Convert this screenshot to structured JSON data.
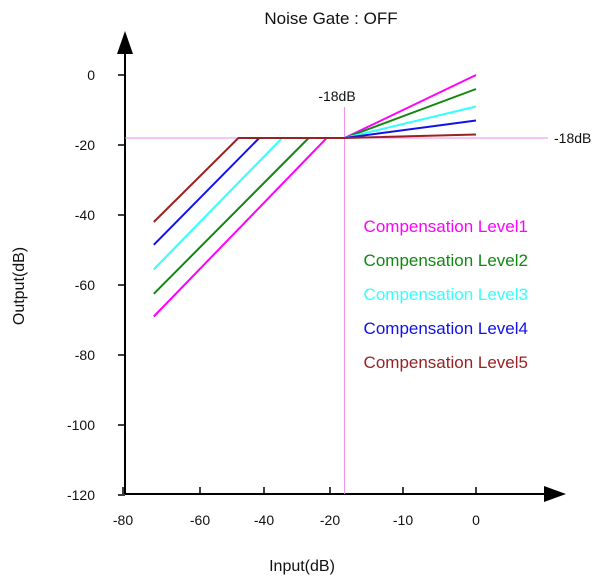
{
  "chart_data": {
    "type": "line",
    "title": "Noise Gate : OFF",
    "xlabel": "Input(dB)",
    "ylabel": "Output(dB)",
    "x_ticks": [
      -80,
      -60,
      -40,
      -20,
      -10,
      0
    ],
    "y_ticks": [
      0,
      -20,
      -40,
      -60,
      -80,
      -100,
      -120
    ],
    "xlim": [
      -80,
      10
    ],
    "ylim": [
      -120,
      5
    ],
    "threshold": -18,
    "threshold_x_label": "-18dB",
    "threshold_y_label": "-18dB",
    "legend_position": "right",
    "series": [
      {
        "name": "Compensation Level1",
        "color": "#ff00ff",
        "points": [
          [
            -72,
            -69
          ],
          [
            -21,
            -18
          ],
          [
            -18,
            -18
          ],
          [
            0,
            0
          ]
        ]
      },
      {
        "name": "Compensation Level2",
        "color": "#118811",
        "points": [
          [
            -72,
            -62.5
          ],
          [
            -26.5,
            -18
          ],
          [
            -18,
            -18
          ],
          [
            0,
            -4
          ]
        ]
      },
      {
        "name": "Compensation Level3",
        "color": "#33ffff",
        "points": [
          [
            -72,
            -55.5
          ],
          [
            -34.5,
            -18
          ],
          [
            -18,
            -18
          ],
          [
            0,
            -9
          ]
        ]
      },
      {
        "name": "Compensation Level4",
        "color": "#1111ee",
        "points": [
          [
            -72,
            -48.5
          ],
          [
            -41.5,
            -18
          ],
          [
            -18,
            -18
          ],
          [
            0,
            -13
          ]
        ]
      },
      {
        "name": "Compensation Level5",
        "color": "#992222",
        "points": [
          [
            -72,
            -42
          ],
          [
            -48,
            -18
          ],
          [
            -18,
            -18
          ],
          [
            0,
            -17
          ]
        ]
      }
    ]
  }
}
